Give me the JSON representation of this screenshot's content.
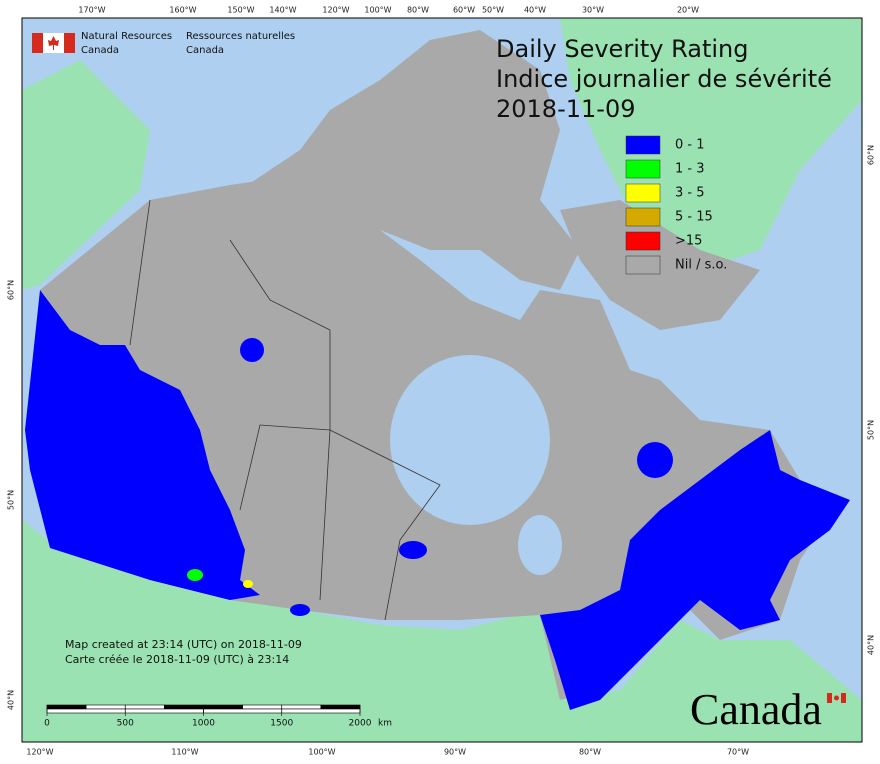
{
  "header": {
    "org_en": [
      "Natural Resources",
      "Canada"
    ],
    "org_fr": [
      "Ressources naturelles",
      "Canada"
    ]
  },
  "title": [
    "Daily Severity Rating",
    "Indice journalier de sévérité",
    "2018-11-09"
  ],
  "legend": [
    {
      "label": "0 - 1",
      "color": "#0000ff"
    },
    {
      "label": "1 - 3",
      "color": "#00ff00"
    },
    {
      "label": "3 - 5",
      "color": "#ffff00"
    },
    {
      "label": "5 - 15",
      "color": "#d4aa00"
    },
    {
      "label": ">15",
      "color": "#ff0000"
    },
    {
      "label": "Nil / s.o.",
      "color": "#a9a9a9"
    }
  ],
  "graticule": {
    "top": [
      "170°W",
      "160°W",
      "150°W",
      "140°W",
      "120°W",
      "100°W",
      "80°W",
      "60°W",
      "50°W",
      "40°W",
      "30°W",
      "20°W"
    ],
    "bottom": [
      "120°W",
      "110°W",
      "100°W",
      "90°W",
      "80°W",
      "70°W"
    ],
    "left": [
      "60°N",
      "50°N",
      "40°N"
    ],
    "right": [
      "60°N",
      "50°N",
      "40°N"
    ]
  },
  "scale_bar": {
    "ticks": [
      0,
      500,
      1000,
      1500,
      2000
    ],
    "unit": "km"
  },
  "notes": [
    "Map created at 23:14 (UTC) on 2018-11-09",
    "Carte créée le 2018-11-09 (UTC) à 23:14"
  ],
  "wordmark": "Canada"
}
